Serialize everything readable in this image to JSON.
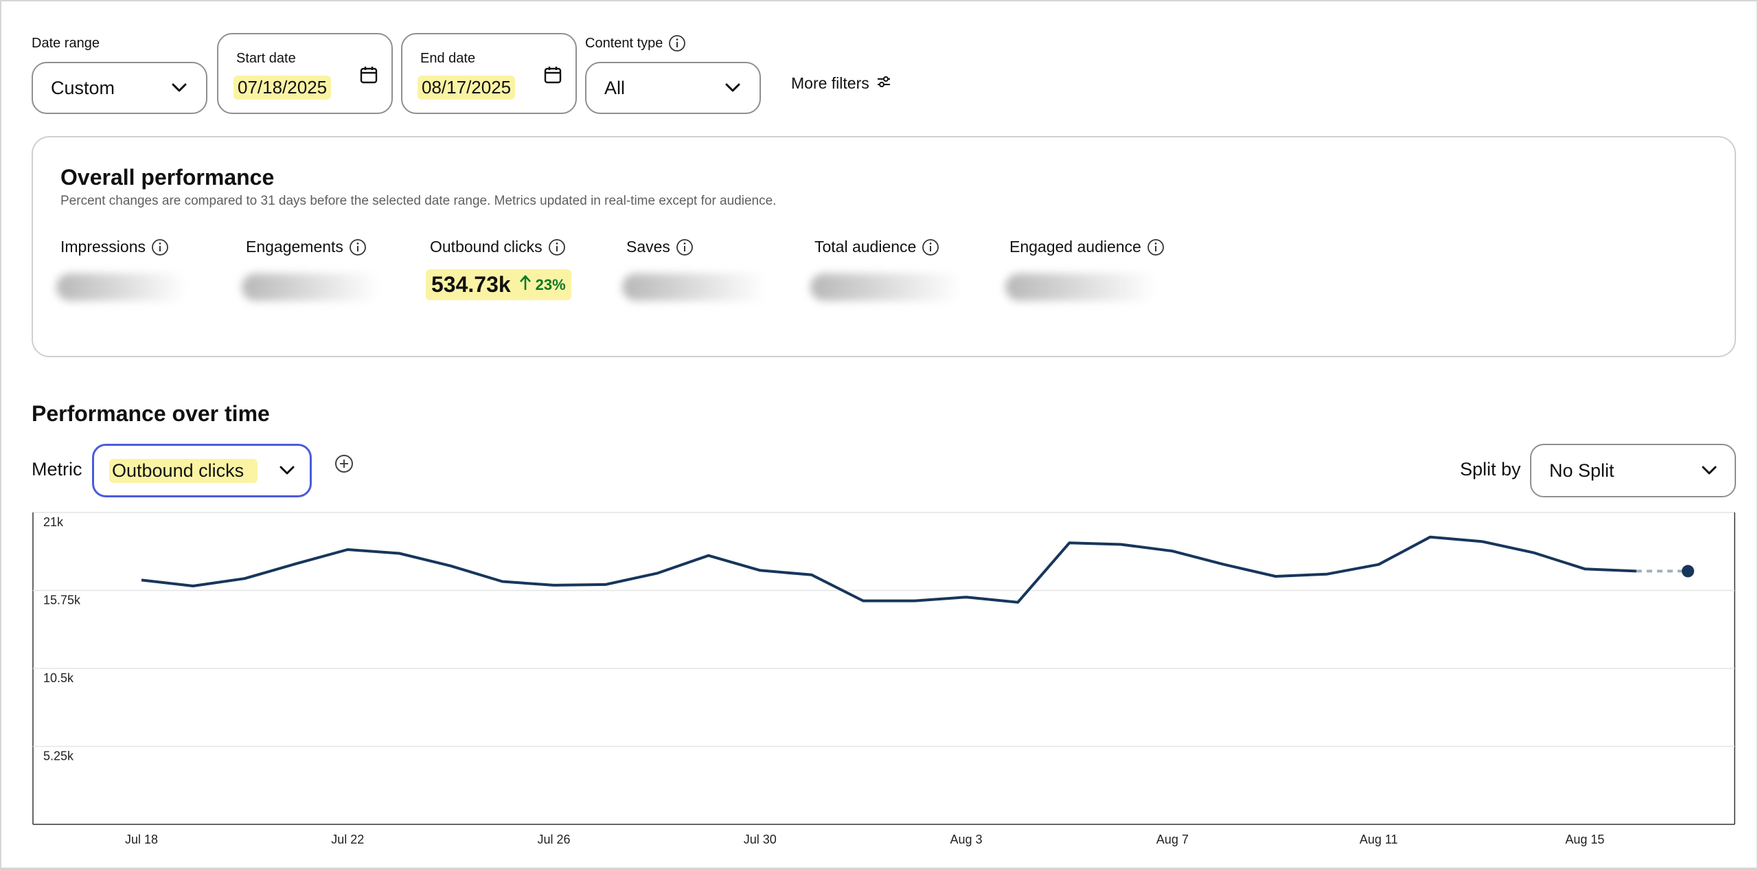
{
  "filters": {
    "date_range": {
      "label": "Date range",
      "value": "Custom"
    },
    "start_date": {
      "label": "Start date",
      "value": "07/18/2025"
    },
    "end_date": {
      "label": "End date",
      "value": "08/17/2025"
    },
    "content_type": {
      "label": "Content type",
      "value": "All"
    },
    "more_filters": "More filters"
  },
  "overall": {
    "title": "Overall performance",
    "subtitle": "Percent changes are compared to 31 days before the selected date range. Metrics updated in real-time except for audience.",
    "metrics": [
      {
        "label": "Impressions",
        "blurred": true
      },
      {
        "label": "Engagements",
        "blurred": true
      },
      {
        "label": "Outbound clicks",
        "value": "534.73k",
        "change": "23%",
        "direction": "up"
      },
      {
        "label": "Saves",
        "blurred": true
      },
      {
        "label": "Total audience",
        "blurred": true
      },
      {
        "label": "Engaged audience",
        "blurred": true
      }
    ]
  },
  "over_time": {
    "title": "Performance over time",
    "metric_label": "Metric",
    "metric_value": "Outbound clicks",
    "split_label": "Split by",
    "split_value": "No Split"
  },
  "colors": {
    "line": "#17365c",
    "highlight": "#fbf3a4",
    "positive": "#0a7a27",
    "focus": "#4a5bdc"
  },
  "chart_data": {
    "type": "line",
    "y_ticks": [
      "21k",
      "15.75k",
      "10.5k",
      "5.25k"
    ],
    "ylim": [
      0,
      21000
    ],
    "x_tick_labels": [
      "Jul 18",
      "Jul 22",
      "Jul 26",
      "Jul 30",
      "Aug 3",
      "Aug 7",
      "Aug 11",
      "Aug 15"
    ],
    "x": [
      "Jul 18",
      "Jul 19",
      "Jul 20",
      "Jul 21",
      "Jul 22",
      "Jul 23",
      "Jul 24",
      "Jul 25",
      "Jul 26",
      "Jul 27",
      "Jul 28",
      "Jul 29",
      "Jul 30",
      "Jul 31",
      "Aug 1",
      "Aug 2",
      "Aug 3",
      "Aug 4",
      "Aug 5",
      "Aug 6",
      "Aug 7",
      "Aug 8",
      "Aug 9",
      "Aug 10",
      "Aug 11",
      "Aug 12",
      "Aug 13",
      "Aug 14",
      "Aug 15",
      "Aug 16",
      "Aug 17"
    ],
    "values": [
      16450,
      16050,
      16550,
      17550,
      18500,
      18250,
      17400,
      16350,
      16100,
      16150,
      16900,
      18100,
      17100,
      16800,
      15050,
      15050,
      15300,
      14950,
      18950,
      18850,
      18400,
      17500,
      16700,
      16850,
      17500,
      19350,
      19050,
      18300,
      17200,
      17050,
      17050
    ],
    "projected_from_index": 29,
    "grid": true,
    "legend": "none"
  }
}
